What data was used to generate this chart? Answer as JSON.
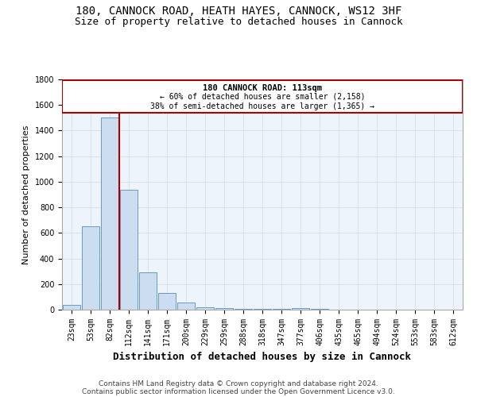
{
  "title_line1": "180, CANNOCK ROAD, HEATH HAYES, CANNOCK, WS12 3HF",
  "title_line2": "Size of property relative to detached houses in Cannock",
  "xlabel": "Distribution of detached houses by size in Cannock",
  "ylabel": "Number of detached properties",
  "categories": [
    "23sqm",
    "53sqm",
    "82sqm",
    "112sqm",
    "141sqm",
    "171sqm",
    "200sqm",
    "229sqm",
    "259sqm",
    "288sqm",
    "318sqm",
    "347sqm",
    "377sqm",
    "406sqm",
    "435sqm",
    "465sqm",
    "494sqm",
    "524sqm",
    "553sqm",
    "583sqm",
    "612sqm"
  ],
  "values": [
    40,
    650,
    1500,
    940,
    290,
    130,
    58,
    20,
    12,
    6,
    5,
    5,
    10,
    5,
    0,
    0,
    0,
    0,
    0,
    0,
    0
  ],
  "bar_color": "#ccddef",
  "bar_edge_color": "#6699cc",
  "red_line_x": 2.5,
  "annotation_line1": "180 CANNOCK ROAD: 113sqm",
  "annotation_line2": "← 60% of detached houses are smaller (2,158)",
  "annotation_line3": "38% of semi-detached houses are larger (1,365) →",
  "annotation_box_color": "#ffffff",
  "annotation_box_edge": "#aa0000",
  "red_line_color": "#aa0000",
  "grid_color": "#d8e4f0",
  "bg_color": "#eef4fb",
  "footer_line1": "Contains HM Land Registry data © Crown copyright and database right 2024.",
  "footer_line2": "Contains public sector information licensed under the Open Government Licence v3.0.",
  "ylim": [
    0,
    1800
  ],
  "title_fontsize": 10,
  "subtitle_fontsize": 9,
  "xlabel_fontsize": 9,
  "ylabel_fontsize": 8,
  "tick_fontsize": 7,
  "footer_fontsize": 6.5
}
